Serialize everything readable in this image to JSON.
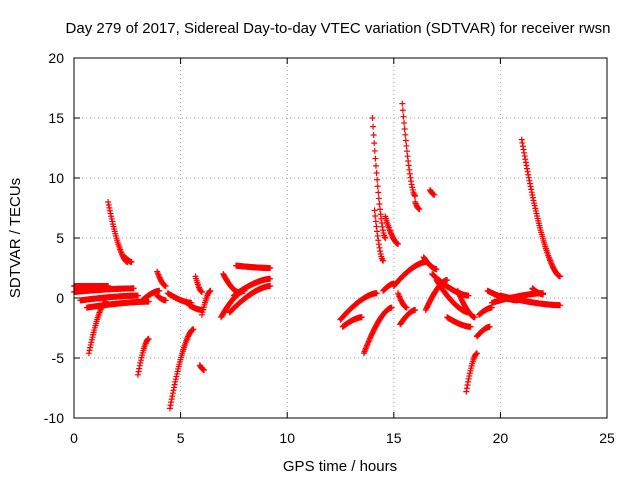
{
  "chart_data": {
    "type": "scatter",
    "title": "Day 279 of 2017, Sidereal Day-to-day VTEC variation (SDTVAR) for receiver rwsn",
    "xlabel": "GPS time / hours",
    "ylabel": "SDTVAR / TECUs",
    "xlim": [
      0,
      25
    ],
    "ylim": [
      -10,
      20
    ],
    "xticks": [
      0,
      5,
      10,
      15,
      20,
      25
    ],
    "yticks": [
      -10,
      -5,
      0,
      5,
      10,
      15,
      20
    ],
    "grid": true,
    "marker": "+",
    "color": "#ff0000",
    "series_segments": [
      {
        "x0": 0.0,
        "x1": 1.6,
        "y0": 1.0,
        "y1": 1.0
      },
      {
        "x0": 0.0,
        "x1": 2.8,
        "y0": 0.5,
        "y1": 0.8
      },
      {
        "x0": 0.3,
        "x1": 3.0,
        "y0": -0.2,
        "y1": 0.2
      },
      {
        "x0": 0.6,
        "x1": 3.5,
        "y0": -0.8,
        "y1": -0.3
      },
      {
        "x0": 0.7,
        "x1": 1.5,
        "y0": -4.6,
        "y1": -0.3
      },
      {
        "x0": 1.6,
        "x1": 2.5,
        "y0": 8.0,
        "y1": 3.0
      },
      {
        "x0": 2.4,
        "x1": 2.7,
        "y0": 3.4,
        "y1": 3.0
      },
      {
        "x0": 3.0,
        "x1": 3.5,
        "y0": -6.4,
        "y1": -3.4
      },
      {
        "x0": 3.2,
        "x1": 4.0,
        "y0": -0.2,
        "y1": 0.6
      },
      {
        "x0": 3.9,
        "x1": 4.3,
        "y0": 2.2,
        "y1": 1.0
      },
      {
        "x0": 3.9,
        "x1": 4.3,
        "y0": 0.2,
        "y1": -0.2
      },
      {
        "x0": 4.5,
        "x1": 5.6,
        "y0": -9.2,
        "y1": -2.6
      },
      {
        "x0": 4.4,
        "x1": 5.5,
        "y0": 0.4,
        "y1": -0.4
      },
      {
        "x0": 5.4,
        "x1": 6.0,
        "y0": -0.6,
        "y1": -1.0
      },
      {
        "x0": 5.7,
        "x1": 6.0,
        "y0": 1.8,
        "y1": 0.5
      },
      {
        "x0": 5.9,
        "x1": 6.1,
        "y0": -5.6,
        "y1": -6.0
      },
      {
        "x0": 6.0,
        "x1": 6.4,
        "y0": -1.4,
        "y1": 0.6
      },
      {
        "x0": 6.9,
        "x1": 8.0,
        "y0": -1.6,
        "y1": 0.6
      },
      {
        "x0": 7.0,
        "x1": 7.7,
        "y0": 2.0,
        "y1": 0.5
      },
      {
        "x0": 7.3,
        "x1": 9.2,
        "y0": -1.2,
        "y1": 1.0
      },
      {
        "x0": 7.5,
        "x1": 9.2,
        "y0": 0.2,
        "y1": 1.6
      },
      {
        "x0": 7.6,
        "x1": 9.2,
        "y0": 2.7,
        "y1": 2.5
      },
      {
        "x0": 12.5,
        "x1": 14.2,
        "y0": -1.8,
        "y1": 0.4
      },
      {
        "x0": 12.6,
        "x1": 13.5,
        "y0": -2.4,
        "y1": -1.6
      },
      {
        "x0": 13.6,
        "x1": 14.9,
        "y0": -4.6,
        "y1": -0.8
      },
      {
        "x0": 14.0,
        "x1": 14.6,
        "y0": 15.0,
        "y1": 5.0
      },
      {
        "x0": 14.1,
        "x1": 14.5,
        "y0": 7.3,
        "y1": 3.1
      },
      {
        "x0": 14.5,
        "x1": 15.0,
        "y0": 0.6,
        "y1": 1.2
      },
      {
        "x0": 14.6,
        "x1": 15.2,
        "y0": 6.8,
        "y1": 4.5
      },
      {
        "x0": 15.2,
        "x1": 15.6,
        "y0": 0.4,
        "y1": -0.8
      },
      {
        "x0": 15.4,
        "x1": 16.0,
        "y0": 16.2,
        "y1": 8.5
      },
      {
        "x0": 15.0,
        "x1": 16.5,
        "y0": 1.0,
        "y1": 3.0
      },
      {
        "x0": 15.3,
        "x1": 16.0,
        "y0": -2.2,
        "y1": -1.0
      },
      {
        "x0": 16.0,
        "x1": 16.2,
        "y0": 8.0,
        "y1": 7.4
      },
      {
        "x0": 16.4,
        "x1": 17.0,
        "y0": 3.4,
        "y1": 2.4
      },
      {
        "x0": 16.7,
        "x1": 16.9,
        "y0": 9.0,
        "y1": 8.6
      },
      {
        "x0": 16.5,
        "x1": 17.5,
        "y0": -1.0,
        "y1": 1.5
      },
      {
        "x0": 16.8,
        "x1": 18.5,
        "y0": 2.0,
        "y1": 0.2
      },
      {
        "x0": 17.0,
        "x1": 18.5,
        "y0": 1.5,
        "y1": -1.2
      },
      {
        "x0": 17.5,
        "x1": 18.6,
        "y0": -1.6,
        "y1": -2.4
      },
      {
        "x0": 18.0,
        "x1": 18.8,
        "y0": 0.6,
        "y1": -1.6
      },
      {
        "x0": 18.4,
        "x1": 18.9,
        "y0": -7.8,
        "y1": -4.6
      },
      {
        "x0": 18.9,
        "x1": 19.5,
        "y0": -3.2,
        "y1": -2.4
      },
      {
        "x0": 19.0,
        "x1": 19.6,
        "y0": -1.4,
        "y1": -0.8
      },
      {
        "x0": 19.4,
        "x1": 20.8,
        "y0": 0.6,
        "y1": -0.2
      },
      {
        "x0": 19.6,
        "x1": 22.0,
        "y0": -0.4,
        "y1": 0.4
      },
      {
        "x0": 20.0,
        "x1": 22.8,
        "y0": 0.2,
        "y1": -0.6
      },
      {
        "x0": 21.0,
        "x1": 22.8,
        "y0": 13.2,
        "y1": 1.8
      },
      {
        "x0": 21.5,
        "x1": 22.0,
        "y0": 0.8,
        "y1": 0.3
      }
    ]
  }
}
